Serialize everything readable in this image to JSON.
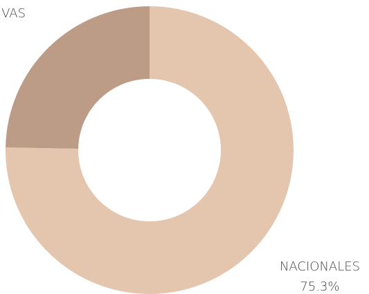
{
  "chart_data": {
    "type": "donut",
    "categories": [
      "NACIONALES",
      "VAS"
    ],
    "values": [
      75.3,
      24.7
    ],
    "value_labels": [
      "75.3%",
      null
    ],
    "colors": [
      "#e4c5ae",
      "#bc9c86"
    ]
  }
}
